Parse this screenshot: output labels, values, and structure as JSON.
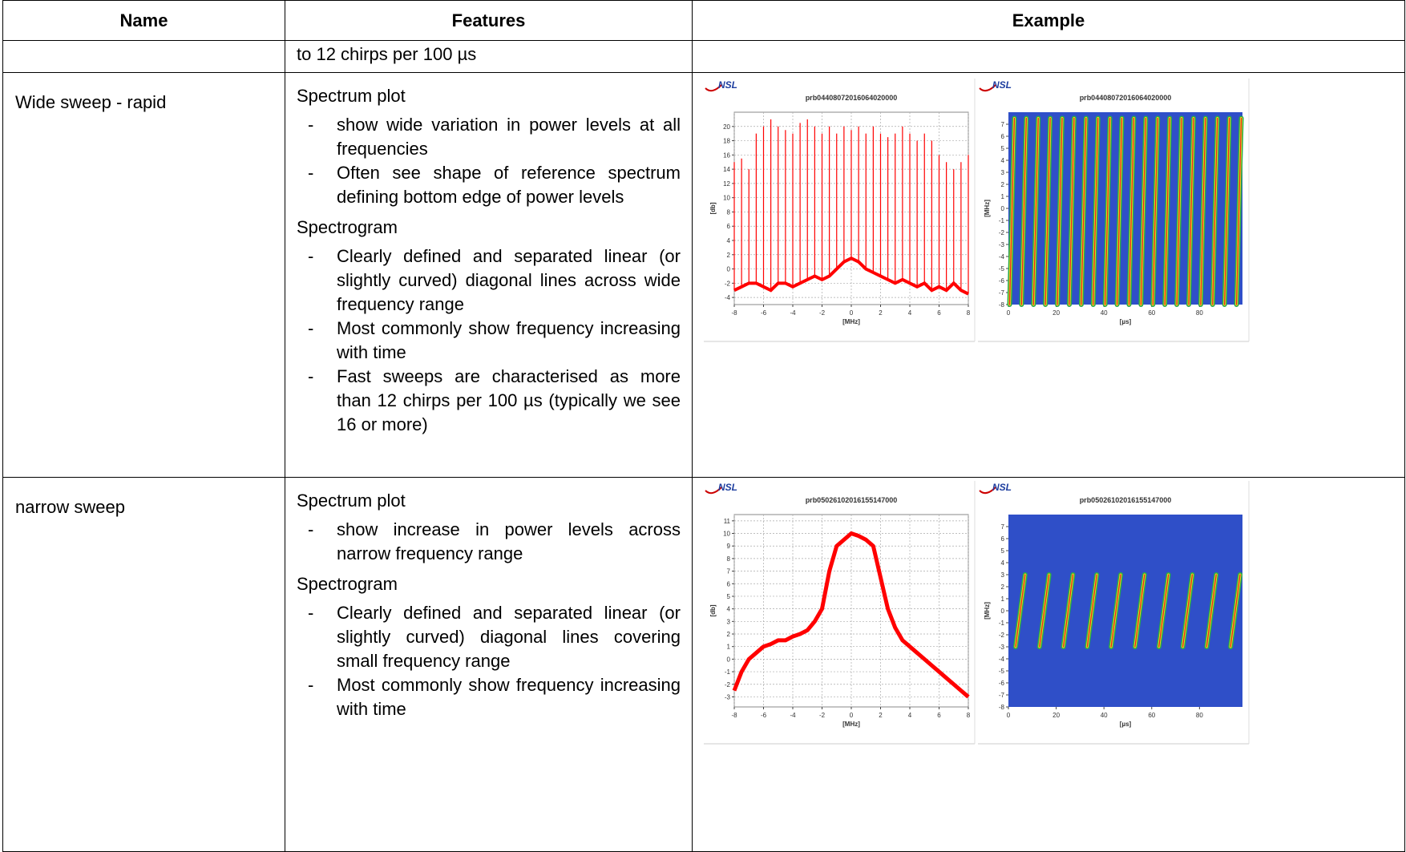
{
  "table": {
    "headers": [
      "Name",
      "Features",
      "Example"
    ],
    "bullet": "-",
    "rows": [
      {
        "features_text": "to 12 chirps per 100 µs"
      },
      {
        "name": "Wide sweep - rapid",
        "sections": [
          {
            "heading": "Spectrum plot",
            "bullets": [
              "show wide variation in power levels at all frequencies",
              "Often see shape of reference spectrum defining bottom edge of power levels"
            ]
          },
          {
            "heading": "Spectrogram",
            "bullets": [
              "Clearly defined and separated linear (or slightly curved) diagonal lines across wide frequency range",
              "Most commonly show frequency increasing with time",
              "Fast sweeps are characterised as more than 12 chirps per 100 µs (typically we see 16 or more)"
            ]
          }
        ]
      },
      {
        "name": "narrow sweep",
        "sections": [
          {
            "heading": "Spectrum plot",
            "bullets": [
              "show increase in power levels across narrow frequency range"
            ]
          },
          {
            "heading": "Spectrogram",
            "bullets": [
              "Clearly defined and separated linear (or slightly curved) diagonal lines covering small frequency range",
              "Most commonly show frequency increasing with time"
            ]
          }
        ]
      }
    ]
  },
  "chart_data": [
    {
      "type": "spikes",
      "logo": "NSL",
      "title": "prb04408072016064020000",
      "xlabel": "[MHz]",
      "ylabel": "[db]",
      "color": "#ff0000",
      "grid": true,
      "x": [
        -8,
        -7.5,
        -7,
        -6.5,
        -6,
        -5.5,
        -5,
        -4.5,
        -4,
        -3.5,
        -3,
        -2.5,
        -2,
        -1.5,
        -1,
        -0.5,
        0,
        0.5,
        1,
        1.5,
        2,
        2.5,
        3,
        3.5,
        4,
        4.5,
        5,
        5.5,
        6,
        6.5,
        7,
        7.5,
        8
      ],
      "high": [
        15,
        15.5,
        14,
        19,
        20,
        21,
        20,
        19.5,
        19,
        20.5,
        21,
        20,
        19,
        20,
        19,
        20,
        19.5,
        20,
        19,
        20,
        19,
        18.5,
        19,
        20,
        19,
        18,
        19,
        18,
        16,
        15,
        14,
        15,
        16
      ],
      "low": [
        -3,
        -2.5,
        -2,
        -2,
        -2.5,
        -3,
        -2,
        -2,
        -2.5,
        -2,
        -1.5,
        -1,
        -1.5,
        -1,
        0,
        1,
        1.5,
        1,
        0,
        -0.5,
        -1,
        -1.5,
        -2,
        -1.5,
        -2,
        -2.5,
        -2,
        -3,
        -2.5,
        -3,
        -2,
        -3,
        -3.5
      ],
      "xlim": [
        -8,
        8
      ],
      "xticks": [
        -8,
        -6,
        -4,
        -2,
        0,
        2,
        4,
        6,
        8
      ],
      "ylim": [
        -5,
        22
      ],
      "yticks": [
        -4,
        -2,
        0,
        2,
        4,
        6,
        8,
        10,
        12,
        14,
        16,
        18,
        20
      ]
    },
    {
      "type": "spectrogram",
      "logo": "NSL",
      "title": "prb04408072016064020000",
      "xlabel": "[µs]",
      "ylabel": "[MHz]",
      "background": "#2f4fc8",
      "x_start": [
        0.5,
        5.5,
        10.5,
        15.5,
        20.5,
        25.5,
        30.5,
        35.5,
        40.5,
        45.5,
        50.5,
        55.5,
        60.5,
        65.5,
        70.5,
        75.5,
        80.5,
        85.5,
        90.5,
        95.5
      ],
      "x_end": [
        2.5,
        7.5,
        12.5,
        17.5,
        22.5,
        27.5,
        32.5,
        37.5,
        42.5,
        47.5,
        52.5,
        57.5,
        62.5,
        67.5,
        72.5,
        77.5,
        82.5,
        87.5,
        92.5,
        97.5
      ],
      "sweep": [
        -8,
        7.5
      ],
      "xlim": [
        0,
        98
      ],
      "xticks": [
        0,
        20,
        40,
        60,
        80
      ],
      "ylim": [
        -8,
        8
      ],
      "yticks": [
        -8,
        -7,
        -6,
        -5,
        -4,
        -3,
        -2,
        -1,
        0,
        1,
        2,
        3,
        4,
        5,
        6,
        7
      ]
    },
    {
      "type": "line",
      "logo": "NSL",
      "title": "prb05026102016155147000",
      "xlabel": "[MHz]",
      "ylabel": "[db]",
      "color": "#ff0000",
      "grid": true,
      "x": [
        -8,
        -7.5,
        -7,
        -6.5,
        -6,
        -5.5,
        -5,
        -4.5,
        -4,
        -3.5,
        -3,
        -2.5,
        -2,
        -1.5,
        -1,
        -0.5,
        0,
        0.5,
        1,
        1.5,
        2,
        2.5,
        3,
        3.5,
        4,
        4.5,
        5,
        5.5,
        6,
        6.5,
        7,
        7.5,
        8
      ],
      "values": [
        -2.5,
        -1,
        0,
        0.5,
        1,
        1.2,
        1.5,
        1.5,
        1.8,
        2,
        2.3,
        3,
        4,
        7,
        9,
        9.5,
        10,
        9.8,
        9.5,
        9,
        6.5,
        4,
        2.5,
        1.5,
        1,
        0.5,
        0,
        -0.5,
        -1,
        -1.5,
        -2,
        -2.5,
        -3
      ],
      "xlim": [
        -8,
        8
      ],
      "xticks": [
        -8,
        -6,
        -4,
        -2,
        0,
        2,
        4,
        6,
        8
      ],
      "ylim": [
        -3.8,
        11.5
      ],
      "yticks": [
        -3,
        -2,
        -1,
        0,
        1,
        2,
        3,
        4,
        5,
        6,
        7,
        8,
        9,
        10,
        11
      ]
    },
    {
      "type": "spectrogram",
      "logo": "NSL",
      "title": "prb05026102016155147000",
      "xlabel": "[µs]",
      "ylabel": "[MHz]",
      "background": "#2f4fc8",
      "x_start": [
        3,
        13,
        23,
        33,
        43,
        53,
        63,
        73,
        83,
        93
      ],
      "x_end": [
        7,
        17,
        27,
        37,
        47,
        57,
        67,
        77,
        87,
        97
      ],
      "sweep": [
        -3,
        3
      ],
      "xlim": [
        0,
        98
      ],
      "xticks": [
        0,
        20,
        40,
        60,
        80
      ],
      "ylim": [
        -8,
        8
      ],
      "yticks": [
        -8,
        -7,
        -6,
        -5,
        -4,
        -3,
        -2,
        -1,
        0,
        1,
        2,
        3,
        4,
        5,
        6,
        7
      ]
    }
  ]
}
